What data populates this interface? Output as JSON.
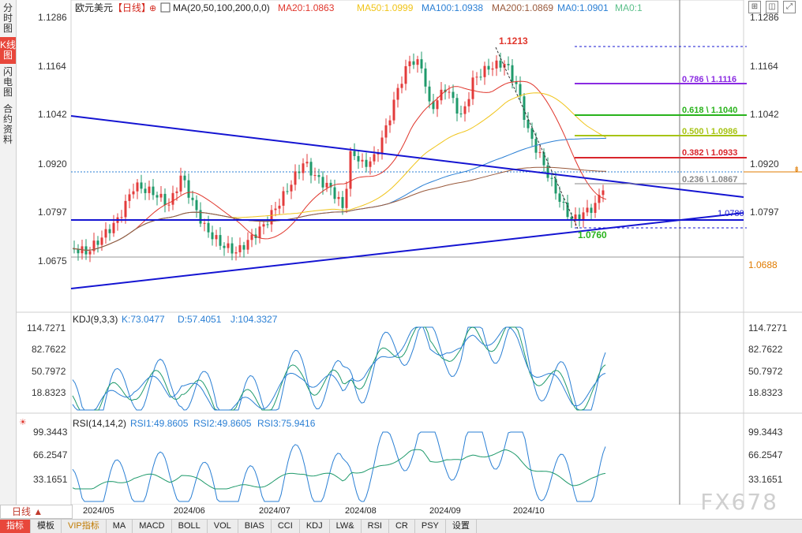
{
  "sidebar": {
    "tabs": [
      {
        "label": "分时图",
        "active": false
      },
      {
        "label": "K线图",
        "active": true
      },
      {
        "label": "闪电图",
        "active": false
      },
      {
        "label": "合约资料",
        "active": false
      }
    ]
  },
  "header": {
    "symbol": "欧元美元",
    "period_tag": "【日线】",
    "indicator": "MA(20,50,100,200,0,0)",
    "ma20": "MA20:1.0863",
    "ma50": "MA50:1.0999",
    "ma100": "MA100:1.0938",
    "ma200": "MA200:1.0869",
    "ma0a": "MA0:1.0901",
    "ma0b": "MA0:1"
  },
  "colors": {
    "up": "#e33b3b",
    "down": "#1f9a6b",
    "ma20": "#e0362c",
    "ma50": "#f0c419",
    "ma100": "#2a7fd4",
    "ma200": "#9a5a3c",
    "trendline": "#1414d2",
    "fib_786": "#8a2be2",
    "fib_618": "#29b31c",
    "fib_500": "#a7c415",
    "fib_382": "#d9252c",
    "fib_236": "#888888"
  },
  "price_axis": {
    "ticks": [
      "1.1286",
      "1.1164",
      "1.1042",
      "1.0920",
      "1.0797",
      "1.0675"
    ],
    "current": "1.0688",
    "right_ticks": [
      "1.1286",
      "1.1164",
      "1.1042",
      "1.0920",
      "1.0797"
    ]
  },
  "annotations": {
    "high": "1.1213",
    "low": "1.0760",
    "line_label": "1.0780"
  },
  "fib_levels": [
    {
      "label": "0.786 \\ 1.1116",
      "value": 1.1116
    },
    {
      "label": "0.618 \\ 1.1040",
      "value": 1.104
    },
    {
      "label": "0.500 \\ 1.0986",
      "value": 1.0986
    },
    {
      "label": "0.382 \\ 1.0933",
      "value": 1.0933
    },
    {
      "label": "0.236 \\ 1.0867",
      "value": 1.0867
    }
  ],
  "kdj": {
    "title": "KDJ(9,3,3)",
    "k": "K:73.0477",
    "d": "D:57.4051",
    "j": "J:104.3327",
    "ticks": [
      "114.7271",
      "82.7622",
      "50.7972",
      "18.8323"
    ]
  },
  "rsi": {
    "title": "RSI(14,14,2)",
    "rsi1": "RSI1:49.8605",
    "rsi2": "RSI2:49.8605",
    "rsi3": "RSI3:75.9416",
    "ticks": [
      "99.3443",
      "66.2547",
      "33.1651"
    ]
  },
  "dates": [
    "2024/05",
    "2024/06",
    "2024/07",
    "2024/08",
    "2024/09",
    "2024/10"
  ],
  "period_button": "日线",
  "bottom_tabs": [
    "指标",
    "模板",
    "VIP指标",
    "MA",
    "MACD",
    "BOLL",
    "VOL",
    "BIAS",
    "CCI",
    "KDJ",
    "LW&",
    "RSI",
    "CR",
    "PSY",
    "设置"
  ],
  "watermark": "FX678"
}
